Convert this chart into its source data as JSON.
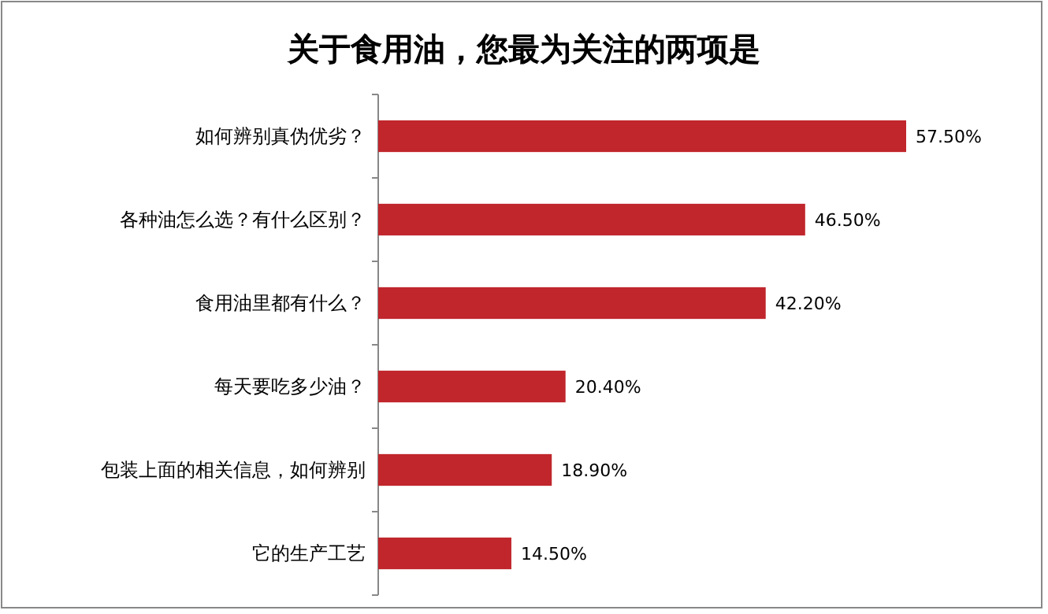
{
  "chart_data": {
    "type": "bar",
    "orientation": "horizontal",
    "title": "关于食用油，您最为关注的两项是",
    "categories": [
      "如何辨别真伪优劣？",
      "各种油怎么选？有什么区别？",
      "食用油里都有什么？",
      "每天要吃多少油？",
      "包装上面的相关信息，如何辨别",
      "它的生产工艺"
    ],
    "values": [
      57.5,
      46.5,
      42.2,
      20.4,
      18.9,
      14.5
    ],
    "value_labels": [
      "57.50%",
      "46.50%",
      "42.20%",
      "20.40%",
      "18.90%",
      "14.50%"
    ],
    "color": "#c0262c"
  }
}
